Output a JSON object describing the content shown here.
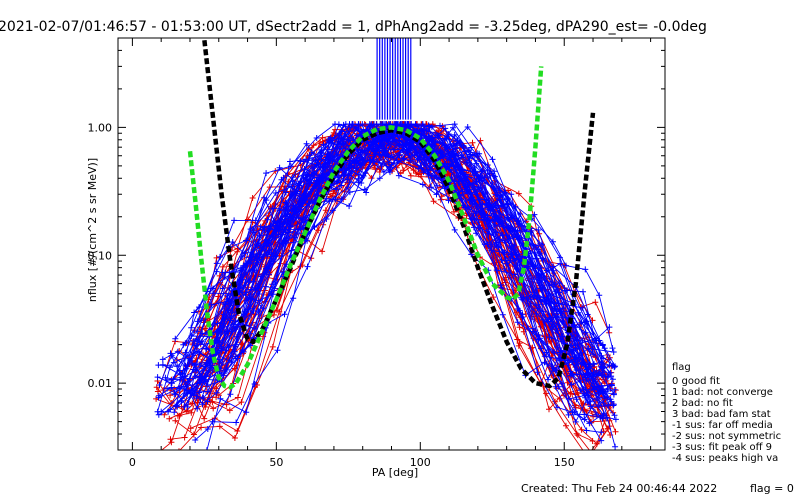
{
  "title": "2021-02-07/01:46:57 - 01:53:00 UT, dSectr2add = 1, dPhAng2add = -3.25deg, dPA290_est=  -0.0deg",
  "footer": {
    "created": "Created: Thu Feb 24 00:46:44 2022",
    "flag_value": "flag = 0"
  },
  "legend": {
    "title": "flag",
    "entries": [
      " 0 good fit",
      " 1 bad: not converge",
      " 2 bad: no fit",
      " 3 bad: bad fam stat",
      "-1 sus: far off media",
      "-2 sus: not symmetric",
      "-3 sus: fit peak off 9",
      "-4 sus: peaks high va"
    ]
  },
  "colors": {
    "red_series": "#e00000",
    "blue_series": "#0000ff",
    "fit_black": "#000000",
    "fit_green": "#22dd22",
    "bundle_purple": "#7a2a90"
  },
  "chart_data": {
    "type": "line",
    "xlabel": "PA [deg]",
    "ylabel": "nflux [#/(cm^2 s sr MeV)]",
    "xlim": [
      -5,
      185
    ],
    "ylim": [
      0.003,
      5.0
    ],
    "yscale": "log",
    "xticks": [
      0,
      50,
      100,
      150
    ],
    "xtick_labels": [
      "0",
      "50",
      "100",
      "150"
    ],
    "yticks": [
      0.01,
      0.1,
      1.0
    ],
    "ytick_labels": [
      "0.01",
      "0.10",
      "1.00"
    ],
    "series": [
      {
        "color": "black",
        "style": "dashed",
        "x": [
          25,
          28,
          31,
          34,
          37,
          40,
          42,
          45,
          50,
          55,
          60,
          65,
          70,
          75,
          80,
          85,
          90,
          95,
          100,
          105,
          110,
          115,
          120,
          125,
          130,
          135,
          140,
          145,
          148,
          151,
          154,
          157,
          160
        ],
        "y": [
          4.8,
          1.2,
          0.3,
          0.09,
          0.035,
          0.022,
          0.021,
          0.026,
          0.045,
          0.08,
          0.15,
          0.26,
          0.42,
          0.62,
          0.8,
          0.9,
          0.95,
          0.9,
          0.77,
          0.55,
          0.33,
          0.17,
          0.08,
          0.04,
          0.021,
          0.013,
          0.01,
          0.0095,
          0.011,
          0.02,
          0.06,
          0.3,
          1.3
        ]
      },
      {
        "color": "green",
        "style": "dashed",
        "x": [
          20,
          22,
          24,
          26,
          28,
          30,
          32,
          34,
          36,
          40,
          45,
          50,
          55,
          60,
          65,
          70,
          75,
          80,
          85,
          90,
          95,
          100,
          105,
          110,
          115,
          120,
          125,
          130,
          132,
          134,
          136,
          138,
          140,
          142
        ],
        "y": [
          0.65,
          0.25,
          0.09,
          0.035,
          0.017,
          0.011,
          0.0095,
          0.0093,
          0.01,
          0.014,
          0.025,
          0.045,
          0.085,
          0.15,
          0.27,
          0.45,
          0.65,
          0.85,
          0.97,
          1.0,
          0.95,
          0.82,
          0.6,
          0.38,
          0.2,
          0.1,
          0.06,
          0.047,
          0.045,
          0.05,
          0.08,
          0.2,
          0.7,
          3.0
        ]
      }
    ]
  }
}
